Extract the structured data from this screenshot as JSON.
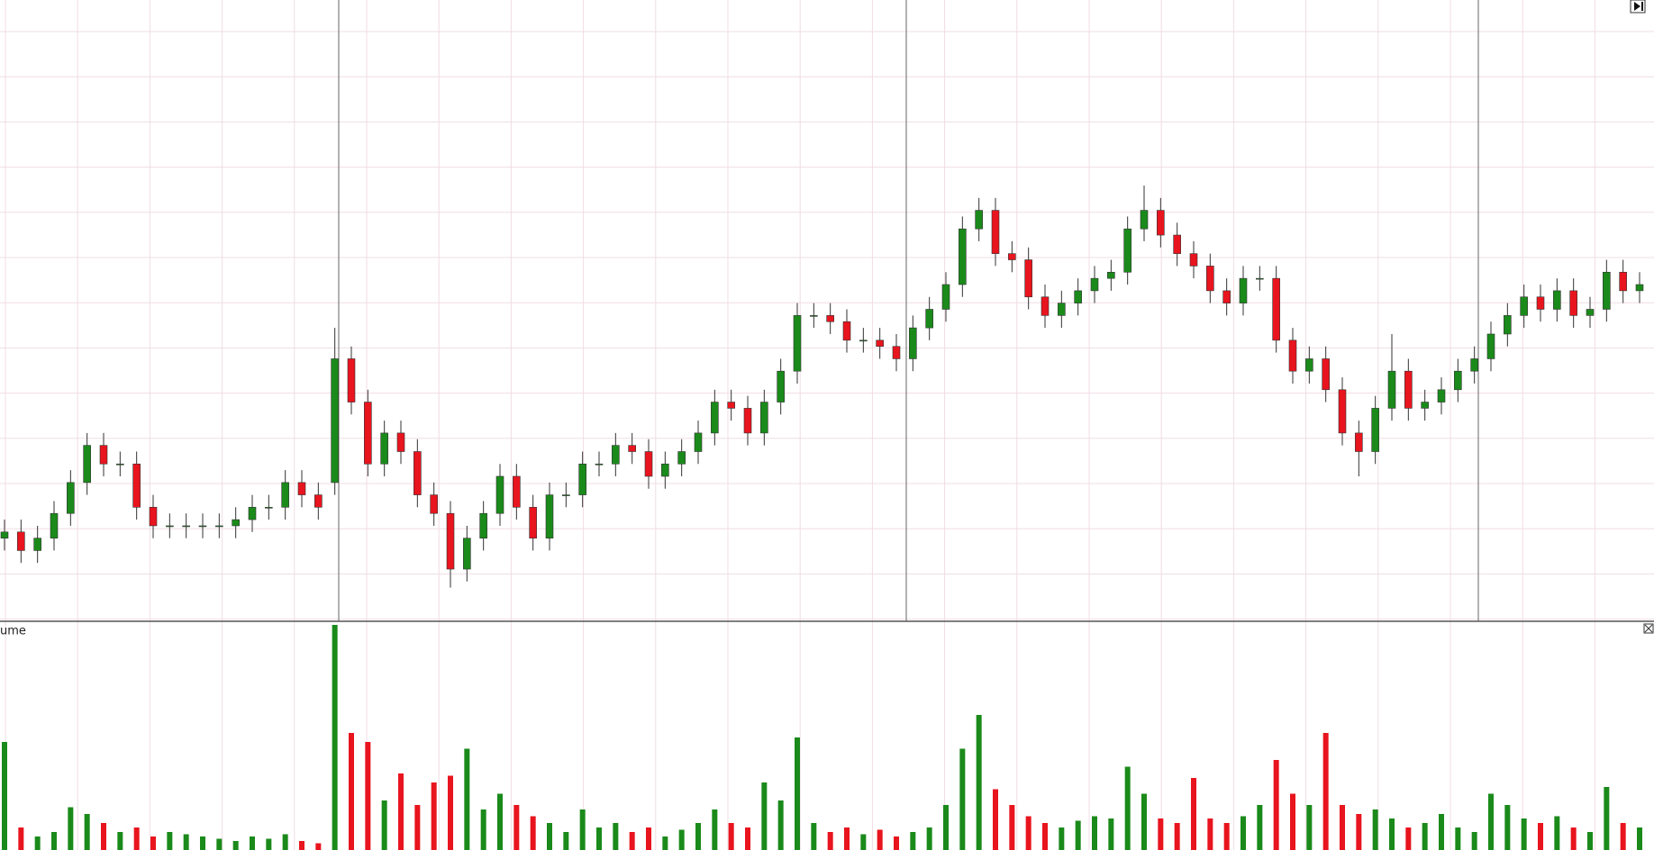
{
  "chart_data": [
    {
      "type": "candlestick",
      "up_color": "#1a8a1a",
      "down_color": "#e8141e",
      "ylim": [
        0,
        100
      ],
      "open": [
        13,
        14,
        11,
        13,
        17,
        22,
        28,
        25,
        25,
        18,
        15,
        15,
        15,
        15,
        15,
        16,
        18,
        18,
        22,
        20,
        22,
        42,
        35,
        25,
        30,
        27,
        20,
        17,
        8,
        13,
        17,
        23,
        18,
        13,
        20,
        20,
        25,
        25,
        28,
        27,
        23,
        25,
        27,
        30,
        35,
        34,
        30,
        35,
        40,
        49,
        49,
        48,
        45,
        45,
        44,
        42,
        47,
        50,
        54,
        63,
        66,
        59,
        58,
        52,
        49,
        51,
        53,
        55,
        56,
        63,
        66,
        62,
        59,
        57,
        53,
        51,
        55,
        55,
        45,
        40,
        42,
        37,
        30,
        27,
        34,
        40,
        34,
        35,
        37,
        40,
        42,
        46,
        49,
        52,
        50,
        53,
        49,
        50,
        56,
        53
      ],
      "high": [
        16,
        16,
        15,
        19,
        24,
        30,
        30,
        27,
        27,
        20,
        17,
        17,
        17,
        17,
        18,
        20,
        20,
        24,
        24,
        22,
        47,
        44,
        37,
        32,
        32,
        29,
        22,
        19,
        15,
        19,
        25,
        25,
        20,
        22,
        22,
        27,
        27,
        30,
        30,
        29,
        27,
        29,
        32,
        37,
        37,
        36,
        37,
        42,
        51,
        51,
        51,
        50,
        47,
        47,
        46,
        49,
        52,
        56,
        65,
        68,
        68,
        61,
        60,
        54,
        53,
        55,
        57,
        58,
        65,
        70,
        68,
        64,
        61,
        59,
        55,
        57,
        57,
        57,
        47,
        44,
        44,
        39,
        32,
        36,
        46,
        42,
        37,
        39,
        42,
        44,
        48,
        51,
        54,
        54,
        55,
        55,
        52,
        58,
        58,
        56
      ],
      "low": [
        11,
        9,
        9,
        11,
        15,
        20,
        23,
        23,
        16,
        13,
        13,
        13,
        13,
        13,
        13,
        14,
        16,
        16,
        18,
        16,
        20,
        33,
        23,
        23,
        25,
        18,
        15,
        5,
        6,
        11,
        15,
        16,
        11,
        11,
        18,
        18,
        23,
        23,
        25,
        21,
        21,
        23,
        25,
        28,
        32,
        28,
        28,
        33,
        38,
        47,
        46,
        43,
        43,
        42,
        40,
        40,
        45,
        48,
        52,
        61,
        57,
        56,
        50,
        47,
        47,
        49,
        51,
        53,
        54,
        61,
        60,
        57,
        55,
        51,
        49,
        49,
        53,
        43,
        38,
        38,
        35,
        28,
        23,
        25,
        32,
        32,
        32,
        33,
        35,
        38,
        40,
        44,
        47,
        48,
        48,
        47,
        47,
        48,
        51,
        51
      ],
      "close": [
        14,
        11,
        13,
        17,
        22,
        28,
        25,
        25,
        18,
        15,
        15,
        15,
        15,
        15,
        16,
        18,
        18,
        22,
        20,
        18,
        42,
        35,
        25,
        30,
        27,
        20,
        17,
        8,
        13,
        17,
        23,
        18,
        13,
        20,
        20,
        25,
        25,
        28,
        27,
        23,
        25,
        27,
        30,
        35,
        34,
        30,
        35,
        40,
        49,
        49,
        48,
        45,
        45,
        44,
        42,
        47,
        50,
        54,
        63,
        66,
        59,
        58,
        52,
        49,
        51,
        53,
        55,
        56,
        63,
        66,
        62,
        59,
        57,
        53,
        51,
        55,
        55,
        45,
        40,
        42,
        37,
        30,
        27,
        34,
        40,
        34,
        35,
        37,
        40,
        42,
        46,
        49,
        52,
        50,
        53,
        49,
        50,
        56,
        53,
        54
      ]
    },
    {
      "type": "bar",
      "label": "ume",
      "ylim": [
        0,
        100
      ],
      "values": [
        48,
        10,
        6,
        8,
        19,
        16,
        12,
        8,
        10,
        6,
        8,
        7,
        6,
        5,
        4,
        6,
        5,
        7,
        4,
        3,
        100,
        52,
        48,
        22,
        34,
        20,
        30,
        33,
        45,
        18,
        25,
        20,
        15,
        12,
        8,
        18,
        10,
        12,
        8,
        10,
        6,
        9,
        12,
        18,
        12,
        10,
        30,
        22,
        50,
        12,
        8,
        10,
        7,
        9,
        6,
        8,
        10,
        20,
        45,
        60,
        27,
        20,
        15,
        12,
        10,
        13,
        15,
        14,
        37,
        25,
        14,
        12,
        32,
        14,
        12,
        15,
        20,
        40,
        25,
        20,
        52,
        20,
        16,
        18,
        14,
        10,
        12,
        16,
        10,
        8,
        25,
        20,
        14,
        12,
        15,
        10,
        8,
        28,
        12,
        10
      ]
    }
  ]
}
